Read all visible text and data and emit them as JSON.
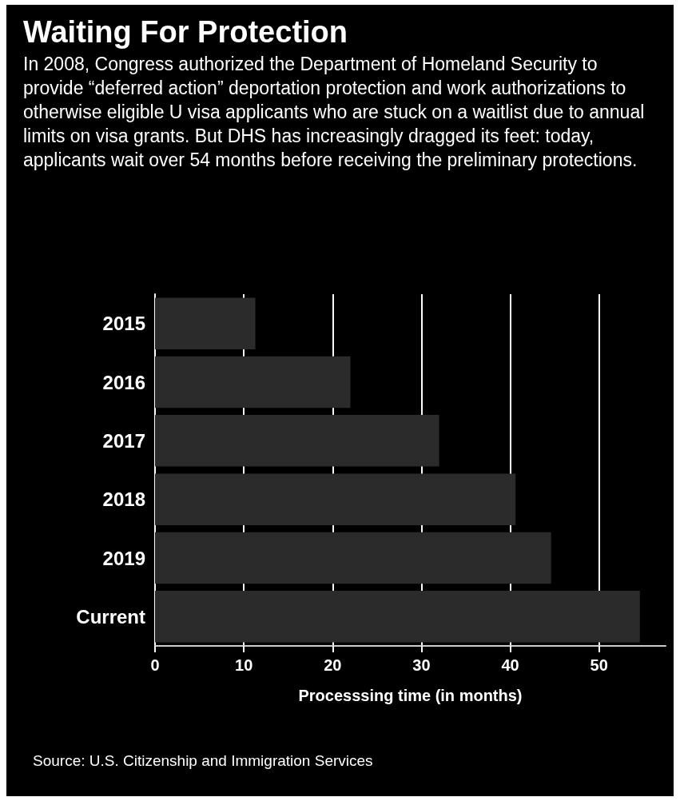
{
  "chart_data": {
    "type": "bar",
    "orientation": "horizontal",
    "title": "Waiting For Protection",
    "subtitle": "In 2008, Congress authorized the Department of Homeland Security to provide “deferred action” deportation protection and work authorizations to otherwise eligible U visa applicants who are stuck on a waitlist due to annual limits on visa grants. But DHS has increasingly dragged its feet: today, applicants wait over 54 months before receiving the preliminary protections.",
    "categories": [
      "2015",
      "2016",
      "2017",
      "2018",
      "2019",
      "Current"
    ],
    "values": [
      11.3,
      22.0,
      32.0,
      40.6,
      44.6,
      54.6
    ],
    "color": "#2b2b2b",
    "xlabel": "Processsing time (in months)",
    "xlim": [
      0,
      57.5
    ],
    "xticks": [
      0,
      10,
      20,
      30,
      40,
      50
    ],
    "grid": "x",
    "annotations": [
      "Source: U.S. Citizenship and Immigration Services"
    ]
  }
}
